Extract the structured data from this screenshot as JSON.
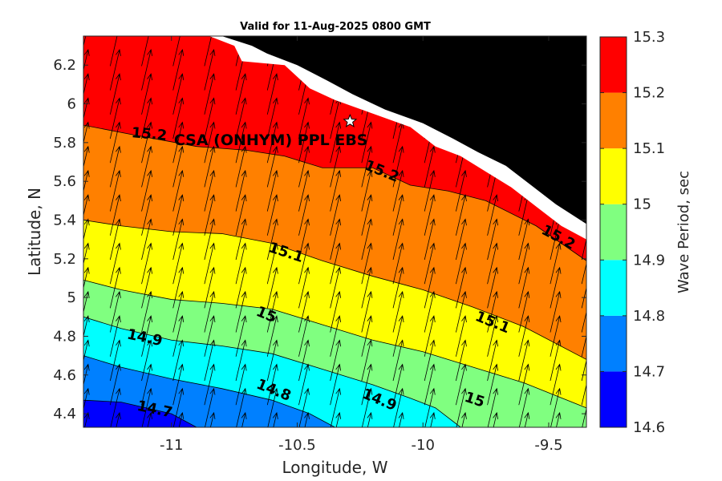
{
  "title": "Valid for 11-Aug-2025 0800 GMT",
  "chart_data": {
    "type": "map",
    "xlabel": "Longitude, W",
    "ylabel": "Latitude, N",
    "xlim": [
      -11.35,
      -9.35
    ],
    "ylim": [
      4.33,
      6.35
    ],
    "xticks": [
      -11,
      -10.5,
      -10,
      -9.5
    ],
    "xtick_labels": [
      "-11",
      "-10.5",
      "-10",
      "-9.5"
    ],
    "yticks": [
      4.4,
      4.6,
      4.8,
      5,
      5.2,
      5.4,
      5.6,
      5.8,
      6,
      6.2
    ],
    "ytick_labels": [
      "4.4",
      "4.6",
      "4.8",
      "5",
      "5.2",
      "5.4",
      "5.6",
      "5.8",
      "6",
      "6.2"
    ],
    "colorbar": {
      "label": "Wave Period, sec",
      "ticks": [
        "14.6",
        "14.7",
        "14.8",
        "14.9",
        "15",
        "15.1",
        "15.2",
        "15.3"
      ],
      "levels": [
        14.6,
        14.7,
        14.8,
        14.9,
        15.0,
        15.1,
        15.2,
        15.3
      ],
      "colors": [
        "#0000ff",
        "#0080ff",
        "#00ffff",
        "#80ff80",
        "#ffff00",
        "#ff8000",
        "#ff0000"
      ]
    },
    "land_color": "#000000",
    "contours": [
      {
        "level": 15.2,
        "points": [
          [
            -11.35,
            5.89
          ],
          [
            -11.15,
            5.84
          ],
          [
            -10.9,
            5.78
          ],
          [
            -10.7,
            5.76
          ],
          [
            -10.55,
            5.73
          ],
          [
            -10.4,
            5.67
          ],
          [
            -10.2,
            5.67
          ],
          [
            -10.05,
            5.58
          ],
          [
            -9.9,
            5.55
          ],
          [
            -9.75,
            5.5
          ],
          [
            -9.55,
            5.37
          ],
          [
            -9.35,
            5.19
          ]
        ]
      },
      {
        "level": 15.1,
        "points": [
          [
            -11.35,
            5.4
          ],
          [
            -11.2,
            5.37
          ],
          [
            -11.0,
            5.34
          ],
          [
            -10.8,
            5.33
          ],
          [
            -10.6,
            5.28
          ],
          [
            -10.4,
            5.19
          ],
          [
            -10.2,
            5.11
          ],
          [
            -10.0,
            5.04
          ],
          [
            -9.8,
            4.95
          ],
          [
            -9.6,
            4.85
          ],
          [
            -9.35,
            4.68
          ]
        ]
      },
      {
        "level": 15.0,
        "points": [
          [
            -11.35,
            5.09
          ],
          [
            -11.2,
            5.04
          ],
          [
            -11.0,
            4.99
          ],
          [
            -10.8,
            4.97
          ],
          [
            -10.6,
            4.94
          ],
          [
            -10.4,
            4.86
          ],
          [
            -10.2,
            4.78
          ],
          [
            -10.0,
            4.72
          ],
          [
            -9.8,
            4.64
          ],
          [
            -9.6,
            4.56
          ],
          [
            -9.35,
            4.43
          ]
        ]
      },
      {
        "level": 14.9,
        "points": [
          [
            -11.35,
            4.9
          ],
          [
            -11.2,
            4.84
          ],
          [
            -11.0,
            4.78
          ],
          [
            -10.8,
            4.75
          ],
          [
            -10.6,
            4.71
          ],
          [
            -10.4,
            4.63
          ],
          [
            -10.2,
            4.55
          ],
          [
            -10.05,
            4.48
          ],
          [
            -9.95,
            4.43
          ],
          [
            -9.85,
            4.33
          ]
        ]
      },
      {
        "level": 14.8,
        "points": [
          [
            -11.35,
            4.7
          ],
          [
            -11.2,
            4.64
          ],
          [
            -11.0,
            4.58
          ],
          [
            -10.8,
            4.53
          ],
          [
            -10.6,
            4.47
          ],
          [
            -10.45,
            4.4
          ],
          [
            -10.35,
            4.33
          ]
        ]
      },
      {
        "level": 14.7,
        "points": [
          [
            -11.35,
            4.47
          ],
          [
            -11.2,
            4.46
          ],
          [
            -11.0,
            4.4
          ],
          [
            -10.9,
            4.33
          ]
        ]
      }
    ],
    "contour_labels": [
      {
        "text": "15.2",
        "lon": -11.09,
        "lat": 5.82,
        "angle": 5
      },
      {
        "text": "15.2",
        "lon": -10.17,
        "lat": 5.63,
        "angle": 22
      },
      {
        "text": "15.2",
        "lon": -9.47,
        "lat": 5.29,
        "angle": 28
      },
      {
        "text": "15.1",
        "lon": -10.55,
        "lat": 5.21,
        "angle": 18
      },
      {
        "text": "15.1",
        "lon": -9.73,
        "lat": 4.85,
        "angle": 22
      },
      {
        "text": "15",
        "lon": -10.63,
        "lat": 4.89,
        "angle": 22
      },
      {
        "text": "15",
        "lon": -9.8,
        "lat": 4.45,
        "angle": 18
      },
      {
        "text": "14.9",
        "lon": -11.11,
        "lat": 4.77,
        "angle": 12
      },
      {
        "text": "14.9",
        "lon": -10.18,
        "lat": 4.45,
        "angle": 22
      },
      {
        "text": "14.8",
        "lon": -10.6,
        "lat": 4.5,
        "angle": 22
      },
      {
        "text": "14.7",
        "lon": -11.07,
        "lat": 4.4,
        "angle": 12
      }
    ],
    "station": {
      "name": "CSA (ONHYM) PPL EBS",
      "lon": -10.29,
      "lat": 5.91
    }
  }
}
